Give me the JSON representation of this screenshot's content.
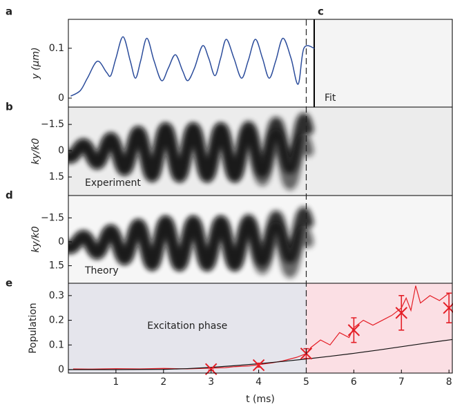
{
  "chart_data": [
    {
      "type": "line",
      "label": "a",
      "ylabel": "y (μm)",
      "xlim": [
        0,
        8.07
      ],
      "ylim": [
        -0.018,
        0.158
      ],
      "yticks": [
        0,
        0.1
      ],
      "inset_label": "c",
      "inset_annotation": "Fit",
      "series": [
        {
          "color": "#2b4c9b",
          "x": [
            0.05,
            0.25,
            0.4,
            0.61,
            0.8,
            0.89,
            1.0,
            1.15,
            1.3,
            1.41,
            1.52,
            1.65,
            1.8,
            1.96,
            2.1,
            2.25,
            2.4,
            2.51,
            2.65,
            2.82,
            2.95,
            3.08,
            3.2,
            3.32,
            3.48,
            3.64,
            3.78,
            3.93,
            4.08,
            4.22,
            4.36,
            4.51,
            4.68,
            4.83,
            4.95,
            5.17
          ],
          "values": [
            0.004,
            0.015,
            0.04,
            0.074,
            0.052,
            0.045,
            0.08,
            0.123,
            0.075,
            0.04,
            0.075,
            0.12,
            0.075,
            0.035,
            0.06,
            0.087,
            0.055,
            0.035,
            0.06,
            0.105,
            0.08,
            0.045,
            0.08,
            0.118,
            0.08,
            0.04,
            0.075,
            0.118,
            0.08,
            0.04,
            0.075,
            0.12,
            0.08,
            0.028,
            0.1,
            0.1
          ]
        }
      ]
    },
    {
      "type": "image",
      "label": "b",
      "ylabel": "ky/k0",
      "ylim": [
        2.56,
        -2.49
      ],
      "yticks": [
        {
          "value": -1.5,
          "label": "−1.5"
        },
        0,
        1.5
      ],
      "annotation": "Experiment"
    },
    {
      "type": "image",
      "label": "d",
      "ylabel": "ky/k0",
      "ylim": [
        2.6,
        -2.9
      ],
      "yticks": [
        {
          "value": -1.5,
          "label": "−1.5"
        },
        0,
        1.5
      ],
      "annotation": "Theory"
    },
    {
      "type": "line",
      "label": "e",
      "ylabel": "Population",
      "xlabel": "t (ms)",
      "xlim": [
        0,
        8.07
      ],
      "xticks": [
        1,
        2,
        3,
        4,
        5,
        6,
        7,
        8
      ],
      "ylim": [
        -0.014,
        0.35
      ],
      "yticks": [
        0,
        0.1,
        0.2,
        0.3
      ],
      "annotation": "Excitation phase",
      "divider": 5,
      "regions": [
        {
          "x": [
            0,
            5
          ],
          "color": "#e5e5ec"
        },
        {
          "x": [
            5,
            8.07
          ],
          "color": "#fbdfe4"
        }
      ],
      "series": [
        {
          "color": "#e41e26",
          "x": [
            0.1,
            0.5,
            1.0,
            1.5,
            2.0,
            2.5,
            3.0,
            3.3,
            3.5,
            3.8,
            4.0,
            4.3,
            4.5,
            4.8,
            5.0,
            5.1,
            5.3,
            5.5,
            5.7,
            5.9,
            6.0,
            6.2,
            6.4,
            6.6,
            6.8,
            7.0,
            7.1,
            7.2,
            7.3,
            7.4,
            7.6,
            7.8,
            8.0
          ],
          "values": [
            0.003,
            0.002,
            0.004,
            0.003,
            0.005,
            0.003,
            0.006,
            0.008,
            0.012,
            0.015,
            0.02,
            0.028,
            0.035,
            0.05,
            0.065,
            0.09,
            0.12,
            0.1,
            0.15,
            0.13,
            0.17,
            0.2,
            0.18,
            0.2,
            0.22,
            0.25,
            0.29,
            0.24,
            0.34,
            0.27,
            0.3,
            0.28,
            0.31
          ]
        },
        {
          "color": "#111111",
          "x": [
            0,
            1,
            2,
            2.5,
            3,
            3.5,
            4,
            4.5,
            5,
            5.5,
            6,
            6.5,
            7,
            7.5,
            8.07
          ],
          "values": [
            0,
            0,
            0.001,
            0.004,
            0.009,
            0.016,
            0.024,
            0.033,
            0.043,
            0.054,
            0.066,
            0.079,
            0.093,
            0.107,
            0.122
          ]
        },
        {
          "type": "errorbar",
          "color": "#e41e26",
          "x": [
            3,
            4,
            5,
            6,
            7,
            8
          ],
          "values": [
            0.002,
            0.018,
            0.065,
            0.16,
            0.23,
            0.25
          ],
          "errors": [
            0.004,
            0.008,
            0.02,
            0.05,
            0.07,
            0.06
          ]
        }
      ]
    }
  ]
}
